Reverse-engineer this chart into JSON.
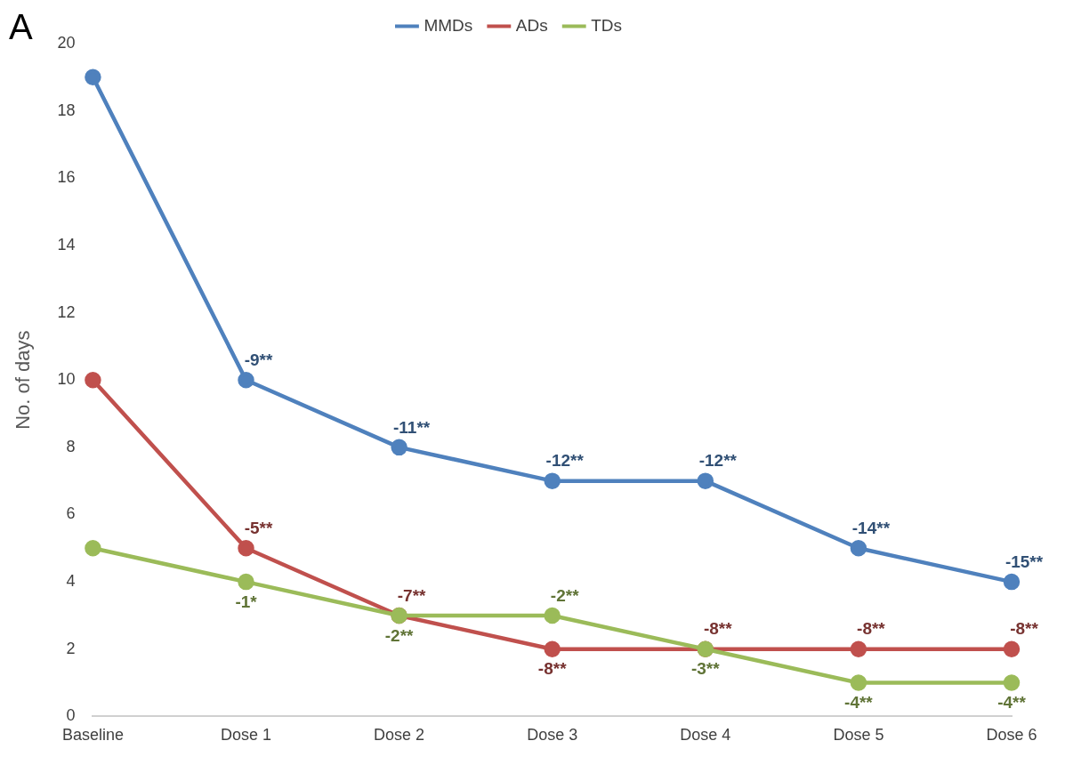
{
  "chart_data": {
    "type": "line",
    "ylabel": "No. of days",
    "annotations": [
      "A",
      {
        "text": "-9**",
        "x": "Dose 1",
        "y": 10
      },
      {
        "text": "-5**",
        "x": "Dose 1",
        "y": 5
      },
      {
        "text": "-1*",
        "x": "Dose 1",
        "y": 4
      },
      {
        "text": "-11**",
        "x": "Dose 2",
        "y": 8
      },
      {
        "text": "-7**",
        "x": "Dose 2",
        "y": 3
      },
      {
        "text": "-2**",
        "x": "Dose 2",
        "y": 3
      },
      {
        "text": "-12**",
        "x": "Dose 3",
        "y": 7
      },
      {
        "text": "-8**",
        "x": "Dose 3",
        "y": 2
      },
      {
        "text": "-2**",
        "x": "Dose 3",
        "y": 3
      },
      {
        "text": "-12**",
        "x": "Dose 4",
        "y": 7
      },
      {
        "text": "-8**",
        "x": "Dose 4",
        "y": 2
      },
      {
        "text": "-3**",
        "x": "Dose 4",
        "y": 2
      },
      {
        "text": "-14**",
        "x": "Dose 5",
        "y": 5
      },
      {
        "text": "-8**",
        "x": "Dose 5",
        "y": 2
      },
      {
        "text": "-4**",
        "x": "Dose 5",
        "y": 1
      },
      {
        "text": "-15**",
        "x": "Dose 6",
        "y": 4
      },
      {
        "text": "-8**",
        "x": "Dose 6",
        "y": 2
      },
      {
        "text": "-4**",
        "x": "Dose 6",
        "y": 1
      }
    ],
    "categories": [
      "Baseline",
      "Dose 1",
      "Dose 2",
      "Dose 3",
      "Dose 4",
      "Dose 5",
      "Dose 6"
    ],
    "series": [
      {
        "name": "MMDs",
        "color": "#4f81bd",
        "values": [
          19,
          10,
          8,
          7,
          7,
          5,
          4
        ]
      },
      {
        "name": "ADs",
        "color": "#c0504d",
        "values": [
          10,
          5,
          3,
          2,
          2,
          2,
          2
        ]
      },
      {
        "name": "TDs",
        "color": "#9bbb59",
        "values": [
          5,
          4,
          3,
          3,
          2,
          1,
          1
        ]
      }
    ],
    "ylim": [
      0,
      20
    ],
    "yticks": [
      0,
      2,
      4,
      6,
      8,
      10,
      12,
      14,
      16,
      18,
      20
    ],
    "grid": false,
    "legend": "top",
    "marker": "circle",
    "line_style": "solid"
  }
}
